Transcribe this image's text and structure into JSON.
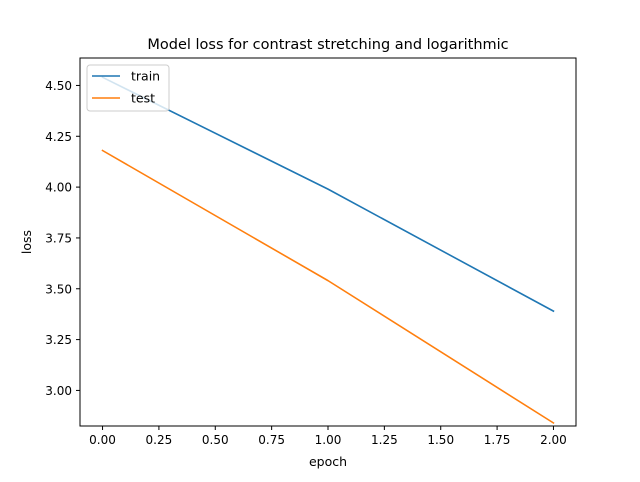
{
  "chart_data": {
    "type": "line",
    "title": "Model loss for contrast stretching and logarithmic",
    "xlabel": "epoch",
    "ylabel": "loss",
    "xlim": [
      -0.1,
      2.1
    ],
    "ylim": [
      2.825,
      4.635
    ],
    "xticks": [
      0.0,
      0.25,
      0.5,
      0.75,
      1.0,
      1.25,
      1.5,
      1.75,
      2.0
    ],
    "xtick_labels": [
      "0.00",
      "0.25",
      "0.50",
      "0.75",
      "1.00",
      "1.25",
      "1.50",
      "1.75",
      "2.00"
    ],
    "yticks": [
      3.0,
      3.25,
      3.5,
      3.75,
      4.0,
      4.25,
      4.5
    ],
    "ytick_labels": [
      "3.00",
      "3.25",
      "3.50",
      "3.75",
      "4.00",
      "4.25",
      "4.50"
    ],
    "x": [
      0,
      1,
      2
    ],
    "series": [
      {
        "name": "train",
        "values": [
          4.54,
          3.99,
          3.39
        ],
        "color": "#1f77b4"
      },
      {
        "name": "test",
        "values": [
          4.18,
          3.54,
          2.84
        ],
        "color": "#ff7f0e"
      }
    ],
    "grid": false,
    "legend": "upper left"
  }
}
